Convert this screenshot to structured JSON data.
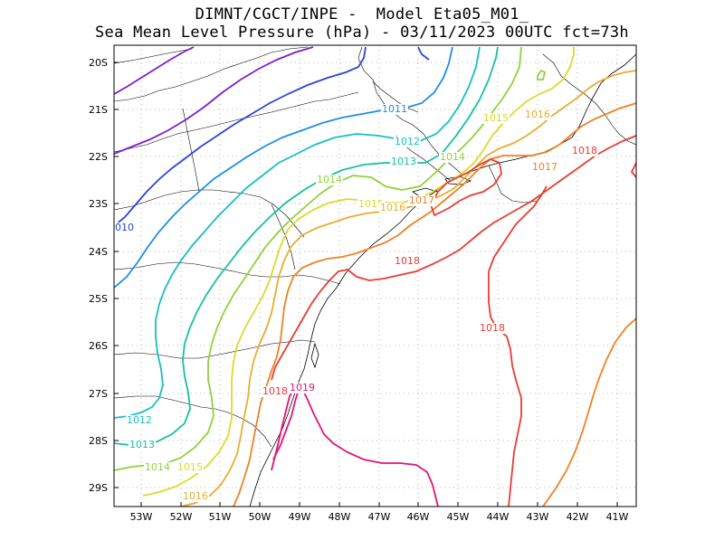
{
  "title_line1": "DIMNT/CGCT/INPE -  Model Eta05_M01_",
  "title_line2": "Sea Mean Level Pressure (hPa) - 03/11/2023 00UTC fct=73h",
  "lat_labels": [
    "20S",
    "21S",
    "22S",
    "23S",
    "24S",
    "25S",
    "26S",
    "27S",
    "28S",
    "29S"
  ],
  "lon_labels": [
    "53W",
    "52W",
    "51W",
    "50W",
    "49W",
    "48W",
    "47W",
    "46W",
    "45W",
    "44W",
    "43W",
    "42W",
    "41W"
  ],
  "isobars": [
    {
      "level": "1010",
      "color": "#2b45d8"
    },
    {
      "level": "1011",
      "color": "#1e8ee6"
    },
    {
      "level": "1012",
      "color": "#16c0c0"
    },
    {
      "level": "1013",
      "color": "#14c39a"
    },
    {
      "level": "1014",
      "color": "#90d23a"
    },
    {
      "level": "1015",
      "color": "#dada2e"
    },
    {
      "level": "1016",
      "color": "#e6ae30"
    },
    {
      "level": "1017",
      "color": "#ee8224"
    },
    {
      "level": "1018",
      "color": "#ea3c32"
    },
    {
      "level": "1019",
      "color": "#e0147a"
    }
  ],
  "labels": [
    {
      "text": "1010",
      "color": "#2b45d8"
    },
    {
      "text": "1011",
      "color": "#1e8ee6"
    },
    {
      "text": "1012",
      "color": "#16c0c0"
    },
    {
      "text": "1012",
      "color": "#16c0c0"
    },
    {
      "text": "1013",
      "color": "#14c39a"
    },
    {
      "text": "1013",
      "color": "#14c39a"
    },
    {
      "text": "1014",
      "color": "#90d23a"
    },
    {
      "text": "1014",
      "color": "#90d23a"
    },
    {
      "text": "1014",
      "color": "#90d23a"
    },
    {
      "text": "1015",
      "color": "#dada2e"
    },
    {
      "text": "1015",
      "color": "#dada2e"
    },
    {
      "text": "1015",
      "color": "#dada2e"
    },
    {
      "text": "1016",
      "color": "#e6ae30"
    },
    {
      "text": "1016",
      "color": "#e6ae30"
    },
    {
      "text": "1016",
      "color": "#e6ae30"
    },
    {
      "text": "1017",
      "color": "#ee8224"
    },
    {
      "text": "1017",
      "color": "#ee8224"
    },
    {
      "text": "1018",
      "color": "#ea3c32"
    },
    {
      "text": "1018",
      "color": "#ea3c32"
    },
    {
      "text": "1018",
      "color": "#ea3c32"
    },
    {
      "text": "1018",
      "color": "#ea3c32"
    },
    {
      "text": "1019",
      "color": "#e0147a"
    }
  ]
}
